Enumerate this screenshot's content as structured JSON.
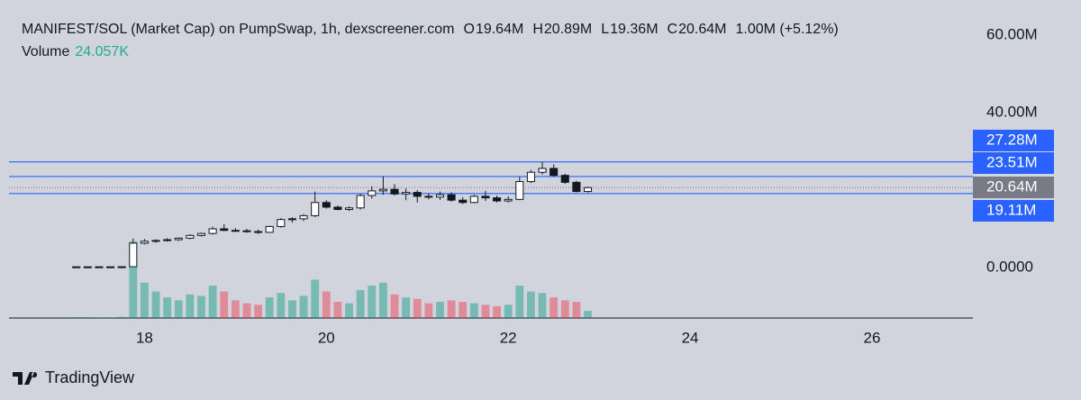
{
  "chart_data": {
    "type": "candlestick",
    "title": "MANIFEST/SOL (Market Cap) on PumpSwap, 1h, dexscreener.com",
    "legend_items": [
      {
        "label": "O",
        "value": "19.64M"
      },
      {
        "label": "H",
        "value": "20.89M"
      },
      {
        "label": "L",
        "value": "19.36M"
      },
      {
        "label": "C",
        "value": "20.64M"
      }
    ],
    "change": "1.00M (+5.12%)",
    "x": [
      17.25,
      17.375,
      17.5,
      17.625,
      17.75,
      17.875,
      18.0,
      18.125,
      18.25,
      18.375,
      18.5,
      18.625,
      18.75,
      18.875,
      19.0,
      19.125,
      19.25,
      19.375,
      19.5,
      19.625,
      19.75,
      19.875,
      20.0,
      20.125,
      20.25,
      20.375,
      20.5,
      20.625,
      20.75,
      20.875,
      21.0,
      21.125,
      21.25,
      21.375,
      21.5,
      21.625,
      21.75,
      21.875,
      22.0,
      22.125,
      22.25,
      22.375,
      22.5,
      22.625,
      22.75,
      22.875
    ],
    "open": [
      0.2,
      0.2,
      0.2,
      0.2,
      0.2,
      0.22,
      6.3,
      6.8,
      7.0,
      7.2,
      7.6,
      8.3,
      8.8,
      10.0,
      9.6,
      9.5,
      9.3,
      9.1,
      10.6,
      12.4,
      12.6,
      13.4,
      16.8,
      15.6,
      15.0,
      15.4,
      18.6,
      19.8,
      20.2,
      19.0,
      19.4,
      18.4,
      18.2,
      18.8,
      17.4,
      16.8,
      18.4,
      18.0,
      17.2,
      17.6,
      22.2,
      24.6,
      25.6,
      23.8,
      22.0,
      19.64
    ],
    "high": [
      0.2,
      0.2,
      0.2,
      0.2,
      0.25,
      7.5,
      7.4,
      7.3,
      7.6,
      7.8,
      8.6,
      9.0,
      10.6,
      11.2,
      10.2,
      10.0,
      9.8,
      10.8,
      12.8,
      13.0,
      13.8,
      19.6,
      17.4,
      16.0,
      15.8,
      19.0,
      21.0,
      23.5,
      21.5,
      20.4,
      20.0,
      19.2,
      19.6,
      19.4,
      18.2,
      18.8,
      19.8,
      18.6,
      18.4,
      23.4,
      25.2,
      27.28,
      26.6,
      24.2,
      22.4,
      20.89
    ],
    "low": [
      0.2,
      0.2,
      0.2,
      0.2,
      0.2,
      0.22,
      6.0,
      6.4,
      6.7,
      6.9,
      7.3,
      8.0,
      8.5,
      9.4,
      9.2,
      9.0,
      8.7,
      9.0,
      10.3,
      11.6,
      12.0,
      13.0,
      15.2,
      14.8,
      14.6,
      15.0,
      17.8,
      18.8,
      18.6,
      17.4,
      16.8,
      17.6,
      17.5,
      17.0,
      16.4,
      16.6,
      17.2,
      16.8,
      16.8,
      17.4,
      21.8,
      24.0,
      23.4,
      21.6,
      19.4,
      19.36
    ],
    "close": [
      0.2,
      0.2,
      0.2,
      0.2,
      0.22,
      6.3,
      6.8,
      7.0,
      7.2,
      7.6,
      8.3,
      8.8,
      10.0,
      9.6,
      9.5,
      9.3,
      9.1,
      10.6,
      12.4,
      12.6,
      13.4,
      16.8,
      15.6,
      15.0,
      15.4,
      18.6,
      19.8,
      20.2,
      19.0,
      19.4,
      18.4,
      18.2,
      18.8,
      17.4,
      16.8,
      18.4,
      18.0,
      17.2,
      17.6,
      22.2,
      24.6,
      25.6,
      23.8,
      22.0,
      19.64,
      20.64
    ],
    "volume": {
      "name": "Volume",
      "value_label": "24.057K",
      "values": [
        3,
        3,
        2,
        2,
        4,
        260,
        120,
        90,
        70,
        60,
        80,
        75,
        110,
        90,
        60,
        50,
        45,
        70,
        85,
        60,
        75,
        130,
        90,
        55,
        50,
        95,
        110,
        120,
        80,
        70,
        65,
        50,
        55,
        60,
        55,
        50,
        45,
        40,
        45,
        110,
        90,
        85,
        70,
        60,
        55,
        24.057
      ]
    },
    "up_color": "#ffffff",
    "down_color": "#131722",
    "wick_color": "#131722",
    "volume_up_color": "rgba(8,153,129,0.45)",
    "volume_down_color": "rgba(242,54,69,0.45)",
    "xlim": [
      16.51,
      27.11
    ],
    "xticks": [
      18,
      20,
      22,
      24,
      26
    ],
    "ylim": [
      -13.02,
      69.07
    ],
    "yticks": [
      {
        "value": 60,
        "label": "60.00M"
      },
      {
        "value": 40,
        "label": "40.00M"
      },
      {
        "value": 0,
        "label": "0.0000"
      }
    ],
    "price_lines": [
      {
        "value": 27.28,
        "label": "27.28M",
        "color": "#2962ff",
        "style": "solid"
      },
      {
        "value": 23.51,
        "label": "23.51M",
        "color": "#2962ff",
        "style": "solid"
      },
      {
        "value": 20.64,
        "label": "20.64M",
        "color": "#787b86",
        "style": "dotted"
      },
      {
        "value": 19.11,
        "label": "19.11M",
        "color": "#2962ff",
        "style": "solid"
      }
    ]
  },
  "branding": "TradingView"
}
